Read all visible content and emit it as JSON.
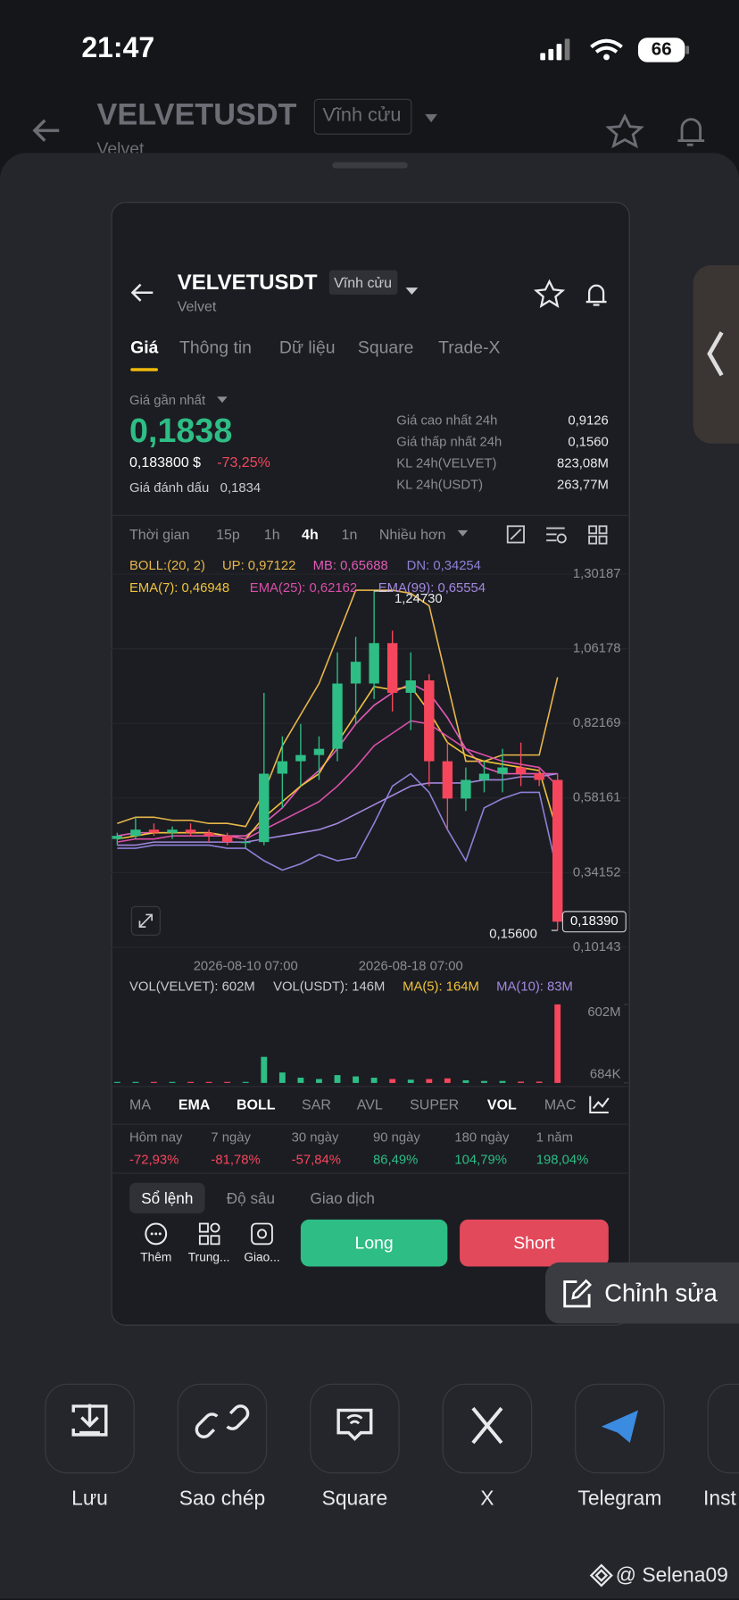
{
  "status_bar": {
    "time": "21:47",
    "battery": "66"
  },
  "background_header": {
    "symbol": "VELVETUSDT",
    "contract": "Vĩnh cửu",
    "name": "Velvet"
  },
  "card": {
    "header": {
      "symbol": "VELVETUSDT",
      "contract": "Vĩnh cửu",
      "name": "Velvet"
    },
    "tabs": [
      "Giá",
      "Thông tin",
      "Dữ liệu",
      "Square",
      "Trade-X"
    ],
    "price": {
      "label": "Giá gần nhất",
      "last": "0,1838",
      "usd": "0,183800 $",
      "change": "-73,25%",
      "mark_label": "Giá đánh dấu",
      "mark_value": "0,1834"
    },
    "stats": [
      [
        "Giá cao nhất 24h",
        "0,9126"
      ],
      [
        "Giá thấp nhất 24h",
        "0,1560"
      ],
      [
        "KL 24h(VELVET)",
        "823,08M"
      ],
      [
        "KL 24h(USDT)",
        "263,77M"
      ]
    ],
    "intervals": [
      "Thời gian",
      "15p",
      "1h",
      "4h",
      "1n",
      "Nhiều hơn"
    ],
    "indicator_tabs": [
      "MA",
      "EMA",
      "BOLL",
      "SAR",
      "AVL",
      "SUPER",
      "VOL",
      "MAC"
    ],
    "performance": {
      "periods": [
        "Hôm nay",
        "7 ngày",
        "30 ngày",
        "90 ngày",
        "180 ngày",
        "1 năm"
      ],
      "changes": [
        "-72,93%",
        "-81,78%",
        "-57,84%",
        "86,49%",
        "104,79%",
        "198,04%"
      ]
    },
    "order_tabs": [
      "Sổ lệnh",
      "Độ sâu",
      "Giao dịch"
    ],
    "actions": [
      "Thêm",
      "Trung...",
      "Giao..."
    ],
    "long": "Long",
    "short": "Short"
  },
  "edit_button": "Chỉnh sửa",
  "share": [
    "Lưu",
    "Sao chép",
    "Square",
    "X",
    "Telegram",
    "Inst"
  ],
  "watermark": "@ Selena09",
  "chart_data": [
    {
      "type": "candlestick",
      "title": "BOLL:(20, 2)",
      "categories": [
        null,
        null,
        null,
        null,
        null,
        null,
        null,
        "2026-08-10 07:00",
        null,
        null,
        null,
        null,
        null,
        null,
        null,
        null,
        "2026-08-18 07:00",
        null,
        null,
        null,
        null,
        null,
        null,
        null,
        null
      ],
      "open": [
        0.45,
        0.46,
        0.48,
        0.47,
        0.48,
        0.47,
        0.46,
        0.44,
        0.44,
        0.66,
        0.7,
        0.72,
        0.74,
        0.95,
        0.95,
        1.08,
        0.92,
        0.96,
        0.7,
        0.58,
        0.64,
        0.66,
        0.68,
        0.66,
        0.64
      ],
      "high": [
        0.47,
        0.52,
        0.5,
        0.49,
        0.5,
        0.48,
        0.47,
        0.45,
        0.92,
        0.78,
        0.82,
        0.78,
        1.05,
        1.1,
        1.2473,
        1.12,
        1.05,
        0.98,
        0.76,
        0.68,
        0.7,
        0.74,
        0.76,
        0.68,
        0.66
      ],
      "low": [
        0.43,
        0.45,
        0.46,
        0.45,
        0.46,
        0.44,
        0.43,
        0.42,
        0.43,
        0.55,
        0.62,
        0.64,
        0.7,
        0.82,
        0.9,
        0.86,
        0.8,
        0.62,
        0.48,
        0.54,
        0.6,
        0.6,
        0.62,
        0.62,
        0.156
      ],
      "close": [
        0.46,
        0.48,
        0.47,
        0.48,
        0.47,
        0.46,
        0.44,
        0.44,
        0.66,
        0.7,
        0.72,
        0.74,
        0.95,
        1.02,
        1.08,
        0.92,
        0.96,
        0.7,
        0.58,
        0.64,
        0.66,
        0.68,
        0.66,
        0.64,
        0.1839
      ],
      "up_color": "#2ebd85",
      "down_color": "#f6465d",
      "lines": [
        {
          "name": "UP: 0,97122",
          "color": "#e8b64a",
          "values": [
            0.5,
            0.52,
            0.52,
            0.51,
            0.51,
            0.5,
            0.5,
            0.49,
            0.6,
            0.75,
            0.85,
            0.95,
            1.1,
            1.25,
            1.25,
            1.25,
            1.24,
            1.2,
            0.95,
            0.7,
            0.7,
            0.72,
            0.72,
            0.72,
            0.97
          ]
        },
        {
          "name": "MB: 0,65688",
          "color": "#e05bb5",
          "values": [
            0.46,
            0.47,
            0.47,
            0.47,
            0.47,
            0.47,
            0.46,
            0.46,
            0.5,
            0.55,
            0.62,
            0.67,
            0.74,
            0.82,
            0.88,
            0.92,
            0.95,
            0.92,
            0.84,
            0.74,
            0.68,
            0.66,
            0.66,
            0.66,
            0.66
          ]
        },
        {
          "name": "DN: 0,34254",
          "color": "#8f7fd6",
          "values": [
            0.42,
            0.42,
            0.43,
            0.43,
            0.43,
            0.43,
            0.42,
            0.42,
            0.38,
            0.35,
            0.37,
            0.4,
            0.38,
            0.39,
            0.5,
            0.62,
            0.66,
            0.6,
            0.48,
            0.38,
            0.55,
            0.58,
            0.6,
            0.6,
            0.34
          ]
        },
        {
          "name": "EMA(7): 0,46948",
          "color": "#f0c33c",
          "values": [
            0.45,
            0.46,
            0.47,
            0.47,
            0.47,
            0.47,
            0.46,
            0.45,
            0.52,
            0.57,
            0.62,
            0.66,
            0.76,
            0.85,
            0.94,
            0.93,
            0.94,
            0.86,
            0.76,
            0.72,
            0.7,
            0.69,
            0.68,
            0.67,
            0.47
          ]
        },
        {
          "name": "EMA(25): 0,62162",
          "color": "#d94fa8",
          "values": [
            0.44,
            0.45,
            0.45,
            0.46,
            0.46,
            0.46,
            0.46,
            0.45,
            0.48,
            0.51,
            0.54,
            0.57,
            0.62,
            0.68,
            0.75,
            0.79,
            0.83,
            0.82,
            0.78,
            0.74,
            0.72,
            0.7,
            0.69,
            0.68,
            0.62
          ]
        },
        {
          "name": "EMA(99): 0,65554",
          "color": "#a487e0",
          "values": [
            0.43,
            0.43,
            0.44,
            0.44,
            0.44,
            0.44,
            0.44,
            0.44,
            0.45,
            0.46,
            0.47,
            0.48,
            0.5,
            0.53,
            0.56,
            0.59,
            0.62,
            0.63,
            0.63,
            0.63,
            0.64,
            0.64,
            0.65,
            0.65,
            0.66
          ]
        }
      ],
      "ylim": [
        0.072,
        1.361
      ],
      "yticks": [
        {
          "value": 1.30187,
          "label": "1,30187"
        },
        {
          "value": 1.06178,
          "label": "1,06178"
        },
        {
          "value": 0.82169,
          "label": "0,82169"
        },
        {
          "value": 0.58161,
          "label": "0,58161"
        },
        {
          "value": 0.34152,
          "label": "0,34152"
        },
        {
          "value": 0.10143,
          "label": "0,10143"
        }
      ],
      "high_label": "1,24730",
      "low_label": "0,15600",
      "last_label": "0,18390"
    },
    {
      "type": "bar",
      "legend": [
        "VOL(VELVET): 602M",
        "VOL(USDT): 146M",
        "MA(5): 164M",
        "MA(10): 83M"
      ],
      "legend_colors": [
        "#c8cacf",
        "#c8cacf",
        "#f0c33c",
        "#a487e0"
      ],
      "values": [
        5,
        6,
        4,
        4,
        5,
        4,
        3,
        3,
        200,
        80,
        40,
        30,
        60,
        50,
        40,
        30,
        25,
        30,
        35,
        20,
        15,
        15,
        10,
        10,
        602
      ],
      "ylim": [
        0,
        602
      ],
      "yticks": [
        {
          "value": 602,
          "label": "602M"
        },
        {
          "value": 0.684,
          "label": "684K"
        }
      ]
    }
  ]
}
